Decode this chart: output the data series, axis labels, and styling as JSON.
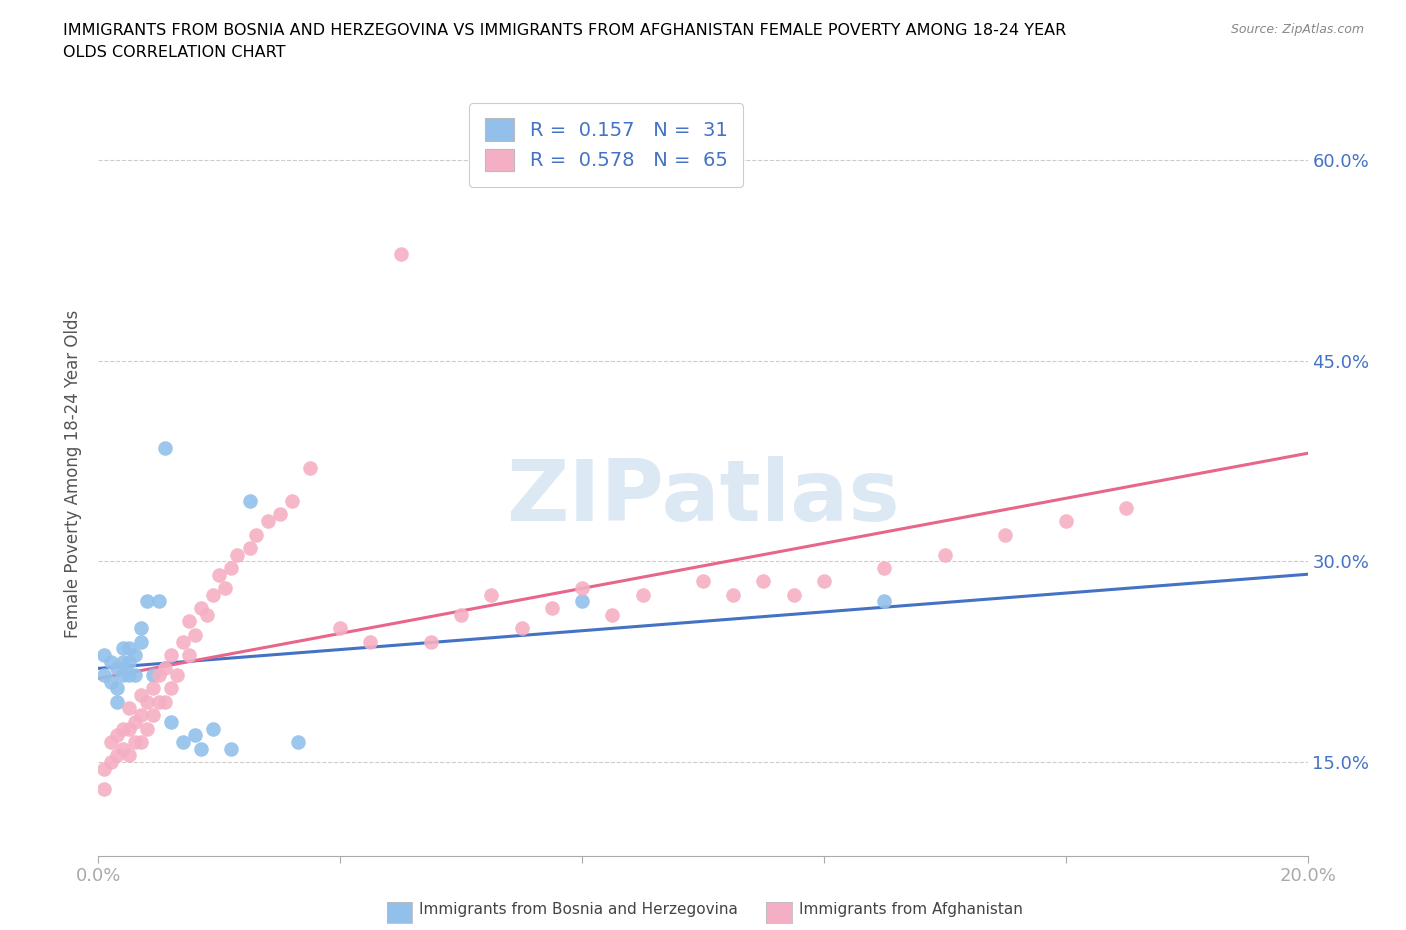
{
  "title_line1": "IMMIGRANTS FROM BOSNIA AND HERZEGOVINA VS IMMIGRANTS FROM AFGHANISTAN FEMALE POVERTY AMONG 18-24 YEAR",
  "title_line2": "OLDS CORRELATION CHART",
  "source": "Source: ZipAtlas.com",
  "ylabel": "Female Poverty Among 18-24 Year Olds",
  "xlim": [
    0.0,
    0.2
  ],
  "ylim": [
    0.08,
    0.65
  ],
  "xticks": [
    0.0,
    0.04,
    0.08,
    0.12,
    0.16,
    0.2
  ],
  "yticks": [
    0.15,
    0.3,
    0.45,
    0.6
  ],
  "ytick_labels": [
    "15.0%",
    "30.0%",
    "45.0%",
    "60.0%"
  ],
  "watermark": "ZIPatlas",
  "color_bosnia": "#92c0ea",
  "color_afghanistan": "#f5afc4",
  "line_color_bosnia": "#4472c4",
  "line_color_afghanistan": "#e8668a",
  "bosnia_x": [
    0.001,
    0.001,
    0.002,
    0.002,
    0.003,
    0.003,
    0.003,
    0.004,
    0.004,
    0.004,
    0.005,
    0.005,
    0.005,
    0.006,
    0.006,
    0.007,
    0.007,
    0.008,
    0.009,
    0.01,
    0.011,
    0.012,
    0.014,
    0.016,
    0.017,
    0.019,
    0.022,
    0.025,
    0.033,
    0.08,
    0.13
  ],
  "bosnia_y": [
    0.215,
    0.23,
    0.21,
    0.225,
    0.195,
    0.205,
    0.22,
    0.215,
    0.225,
    0.235,
    0.215,
    0.225,
    0.235,
    0.215,
    0.23,
    0.24,
    0.25,
    0.27,
    0.215,
    0.27,
    0.385,
    0.18,
    0.165,
    0.17,
    0.16,
    0.175,
    0.16,
    0.345,
    0.165,
    0.27,
    0.27
  ],
  "afghanistan_x": [
    0.001,
    0.001,
    0.002,
    0.002,
    0.003,
    0.003,
    0.004,
    0.004,
    0.005,
    0.005,
    0.005,
    0.006,
    0.006,
    0.007,
    0.007,
    0.007,
    0.008,
    0.008,
    0.009,
    0.009,
    0.01,
    0.01,
    0.011,
    0.011,
    0.012,
    0.012,
    0.013,
    0.014,
    0.015,
    0.015,
    0.016,
    0.017,
    0.018,
    0.019,
    0.02,
    0.021,
    0.022,
    0.023,
    0.025,
    0.026,
    0.028,
    0.03,
    0.032,
    0.035,
    0.04,
    0.045,
    0.05,
    0.055,
    0.06,
    0.065,
    0.07,
    0.075,
    0.08,
    0.085,
    0.09,
    0.1,
    0.105,
    0.11,
    0.115,
    0.12,
    0.13,
    0.14,
    0.15,
    0.16,
    0.17
  ],
  "afghanistan_y": [
    0.13,
    0.145,
    0.15,
    0.165,
    0.155,
    0.17,
    0.16,
    0.175,
    0.155,
    0.175,
    0.19,
    0.165,
    0.18,
    0.165,
    0.185,
    0.2,
    0.175,
    0.195,
    0.185,
    0.205,
    0.195,
    0.215,
    0.195,
    0.22,
    0.205,
    0.23,
    0.215,
    0.24,
    0.23,
    0.255,
    0.245,
    0.265,
    0.26,
    0.275,
    0.29,
    0.28,
    0.295,
    0.305,
    0.31,
    0.32,
    0.33,
    0.335,
    0.345,
    0.37,
    0.25,
    0.24,
    0.53,
    0.24,
    0.26,
    0.275,
    0.25,
    0.265,
    0.28,
    0.26,
    0.275,
    0.285,
    0.275,
    0.285,
    0.275,
    0.285,
    0.295,
    0.305,
    0.32,
    0.33,
    0.34
  ]
}
